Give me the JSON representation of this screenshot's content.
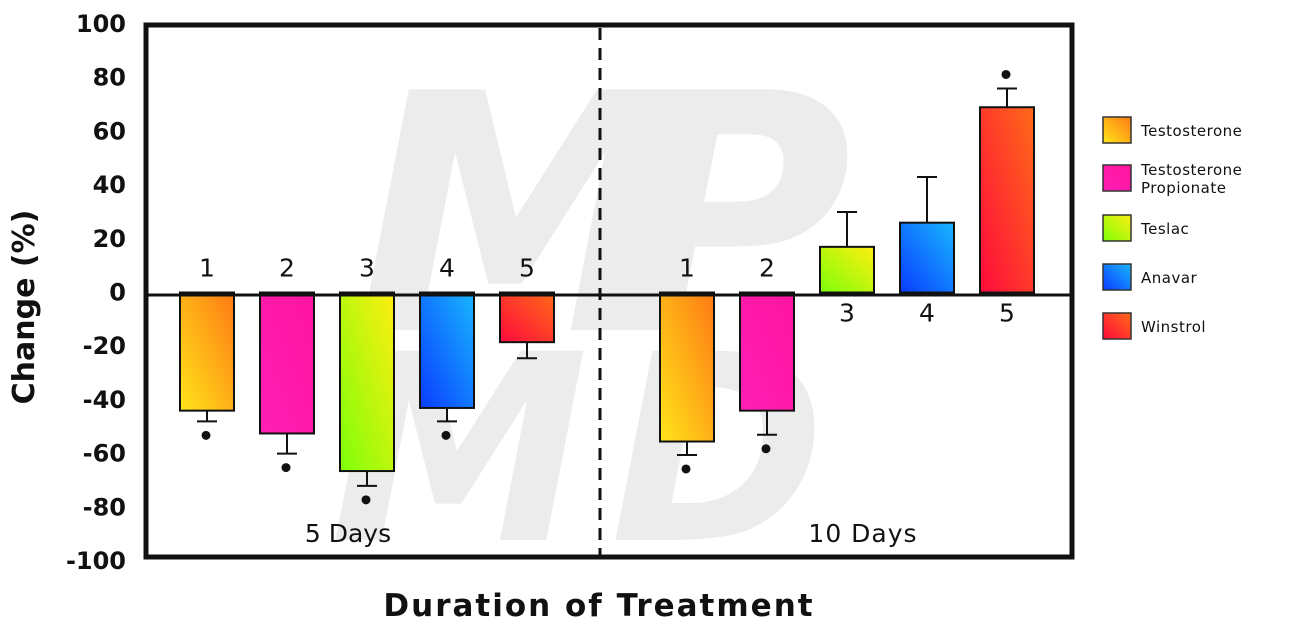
{
  "chart_data": {
    "type": "bar",
    "xlabel": "Duration of Treatment",
    "ylabel": "Change (%)",
    "ylim": [
      -100,
      100
    ],
    "yticks": [
      100,
      80,
      60,
      40,
      20,
      0,
      -20,
      -40,
      -60,
      -80,
      -100
    ],
    "grid": false,
    "legend_position": "right",
    "groups": [
      {
        "label": "5 Days",
        "bars": [
          {
            "number": "1",
            "series": "Testosterone",
            "value": -44,
            "error": 4,
            "significant": true
          },
          {
            "number": "2",
            "series": "Testosterone Propionate",
            "value": -52.5,
            "error": 7.5,
            "significant": true
          },
          {
            "number": "3",
            "series": "Teslac",
            "value": -66.5,
            "error": 5.5,
            "significant": true
          },
          {
            "number": "4",
            "series": "Anavar",
            "value": -43,
            "error": 5,
            "significant": true
          },
          {
            "number": "5",
            "series": "Winstrol",
            "value": -18.5,
            "error": 6,
            "significant": false
          }
        ]
      },
      {
        "label": "10 Days",
        "bars": [
          {
            "number": "1",
            "series": "Testosterone",
            "value": -55.5,
            "error": 5,
            "significant": true
          },
          {
            "number": "2",
            "series": "Testosterone Propionate",
            "value": -44,
            "error": 9,
            "significant": true
          },
          {
            "number": "3",
            "series": "Teslac",
            "value": 17,
            "error": 13,
            "significant": false
          },
          {
            "number": "4",
            "series": "Anavar",
            "value": 26,
            "error": 17,
            "significant": false
          },
          {
            "number": "5",
            "series": "Winstrol",
            "value": 69,
            "error": 7,
            "significant": true
          }
        ]
      }
    ],
    "legend": [
      {
        "series": "Testosterone",
        "lines": [
          "Testosterone"
        ],
        "colors": [
          "#ffe51a",
          "#ff7a14"
        ]
      },
      {
        "series": "Testosterone Propionate",
        "lines": [
          "Testosterone",
          "Propionate"
        ],
        "colors": [
          "#ff1fb4",
          "#ff14a0"
        ]
      },
      {
        "series": "Teslac",
        "lines": [
          "Teslac"
        ],
        "colors": [
          "#7dff0a",
          "#ffee10"
        ]
      },
      {
        "series": "Anavar",
        "lines": [
          "Anavar"
        ],
        "colors": [
          "#0a3cff",
          "#18b6ff"
        ]
      },
      {
        "series": "Winstrol",
        "lines": [
          "Winstrol"
        ],
        "colors": [
          "#ff0a3c",
          "#ff6a18"
        ]
      }
    ]
  }
}
